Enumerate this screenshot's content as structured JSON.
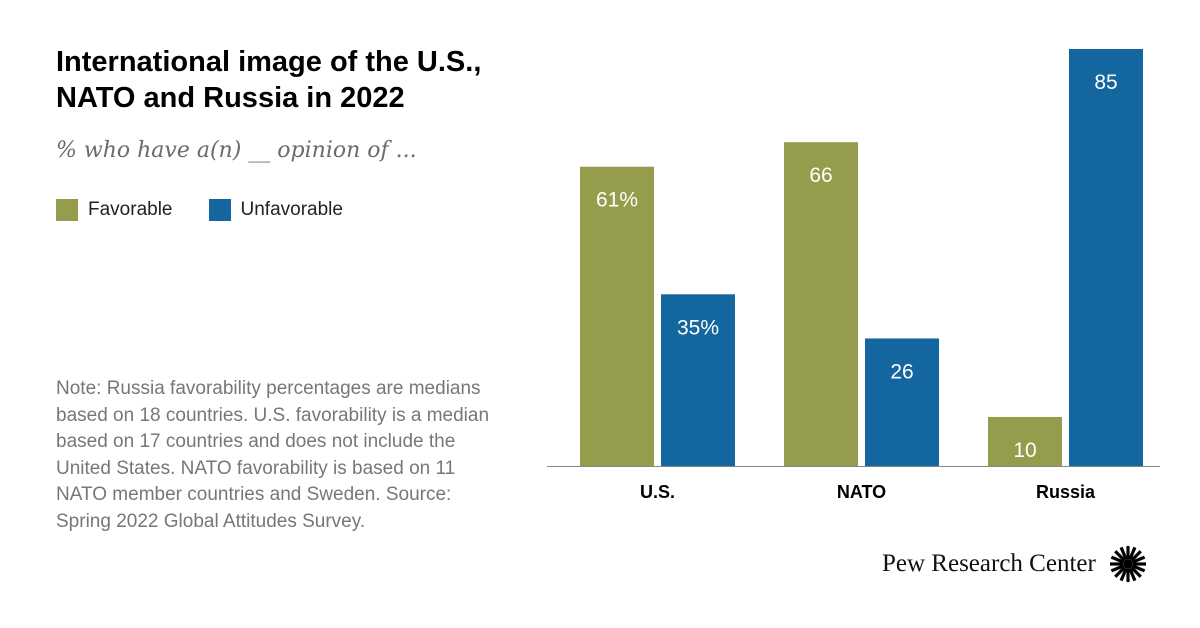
{
  "title_line1": "International image of the U.S.,",
  "title_line2": "NATO and Russia in 2022",
  "subtitle": "% who have a(n) __ opinion of ...",
  "note": "Note: Russia favorability percentages are medians based on 18 countries. U.S. favorability is a median based on 17 countries and does not include the United States. NATO favorability is based on 11 NATO member countries and Sweden.",
  "source": "Source: Spring 2022 Global Attitudes Survey.",
  "logo_text": "Pew Research Center",
  "logo_icon": "sunburst-icon",
  "chart_data": {
    "type": "bar",
    "categories": [
      "U.S.",
      "NATO",
      "Russia"
    ],
    "series": [
      {
        "name": "Favorable",
        "values": [
          61,
          66,
          10
        ],
        "labels": [
          "61%",
          "66",
          "10"
        ],
        "color": "#959c4b"
      },
      {
        "name": "Unfavorable",
        "values": [
          35,
          26,
          85
        ],
        "labels": [
          "35%",
          "26",
          "85"
        ],
        "color": "#13679e"
      }
    ],
    "ylim": [
      0,
      85
    ],
    "grid": false,
    "legend": "top-left"
  }
}
